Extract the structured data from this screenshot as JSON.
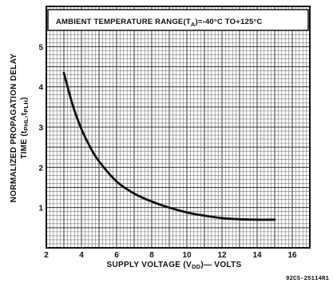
{
  "chart_data": {
    "type": "line",
    "title": "",
    "annotation_main": "AMBIENT TEMPERATURE RANGE(T",
    "annotation_sub": "A",
    "annotation_tail": ")=-40°C TO+125°C",
    "xlabel_main": "SUPPLY VOLTAGE (V",
    "xlabel_sub": "DD",
    "xlabel_tail": ")— VOLTS",
    "ylabel_line1": "NORMALIZED PROPAGATION DELAY",
    "ylabel_line2_main": "TIME (t",
    "ylabel_line2_sub1": "PHL",
    "ylabel_line2_mid": ",t",
    "ylabel_line2_sub2": "PLH",
    "ylabel_line2_tail": ")",
    "xlim": [
      2,
      17
    ],
    "ylim": [
      0,
      6
    ],
    "x_ticks": [
      "2",
      "4",
      "6",
      "8",
      "10",
      "12",
      "14",
      "16"
    ],
    "y_ticks": [
      "1",
      "2",
      "3",
      "4",
      "5"
    ],
    "grid": true,
    "series": [
      {
        "x": [
          3,
          3.5,
          4,
          4.5,
          5,
          6,
          7,
          8,
          9,
          10,
          11,
          12,
          13,
          14,
          15
        ],
        "y": [
          4.35,
          3.55,
          2.95,
          2.5,
          2.15,
          1.65,
          1.35,
          1.15,
          1.0,
          0.88,
          0.8,
          0.74,
          0.71,
          0.7,
          0.7
        ]
      }
    ],
    "figure_code": "92CS-25114R1"
  }
}
